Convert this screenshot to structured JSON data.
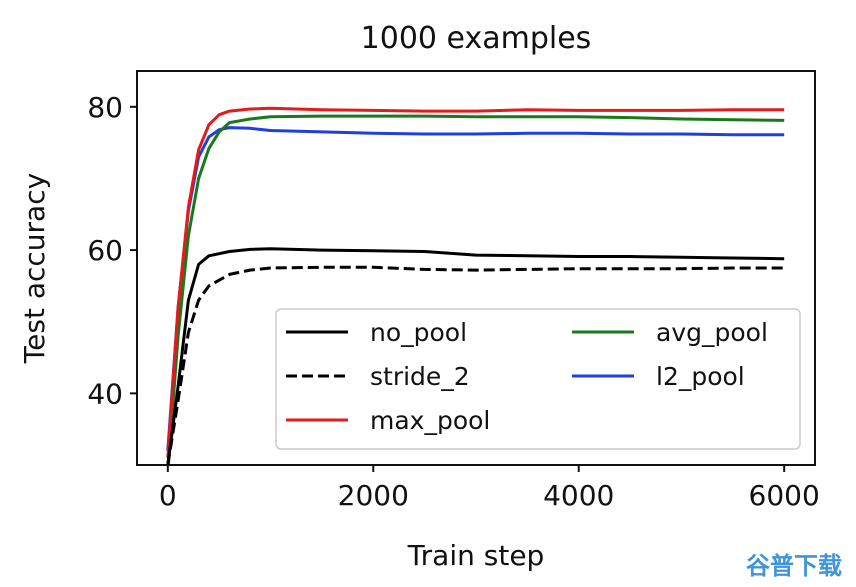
{
  "chart_data": {
    "type": "line",
    "title": "1000 examples",
    "xlabel": "Train step",
    "ylabel": "Test accuracy",
    "xlim": [
      -300,
      6300
    ],
    "ylim": [
      30,
      85
    ],
    "xticks": [
      0,
      2000,
      4000,
      6000
    ],
    "xtick_labels": [
      "0",
      "2000",
      "4000",
      "6000"
    ],
    "yticks": [
      40,
      60,
      80
    ],
    "ytick_labels": [
      "40",
      "60",
      "80"
    ],
    "grid": false,
    "legend": {
      "placement": "lower-right",
      "columns": 2
    },
    "series": [
      {
        "name": "no_pool",
        "color": "#000000",
        "dash": "solid",
        "x": [
          0,
          100,
          200,
          300,
          400,
          600,
          800,
          1000,
          1500,
          2000,
          2500,
          3000,
          3500,
          4000,
          4500,
          5000,
          5500,
          6000
        ],
        "y": [
          30,
          41,
          53,
          58,
          59.2,
          59.8,
          60.1,
          60.2,
          60,
          59.9,
          59.8,
          59.3,
          59.2,
          59.1,
          59.1,
          59,
          58.9,
          58.8
        ]
      },
      {
        "name": "stride_2",
        "color": "#000000",
        "dash": "dashed",
        "x": [
          0,
          100,
          200,
          300,
          400,
          600,
          800,
          1000,
          1500,
          2000,
          2500,
          3000,
          3500,
          4000,
          4500,
          5000,
          5500,
          6000
        ],
        "y": [
          30,
          39,
          48.5,
          53,
          55,
          56.6,
          57.2,
          57.5,
          57.6,
          57.6,
          57.3,
          57.2,
          57.3,
          57.4,
          57.4,
          57.4,
          57.5,
          57.5
        ]
      },
      {
        "name": "max_pool",
        "color": "#e41a1c",
        "dash": "solid",
        "x": [
          0,
          100,
          200,
          300,
          400,
          500,
          600,
          800,
          1000,
          1500,
          2000,
          2500,
          3000,
          3500,
          4000,
          4500,
          5000,
          5500,
          6000
        ],
        "y": [
          31,
          52,
          66,
          74,
          77.5,
          78.9,
          79.4,
          79.7,
          79.8,
          79.6,
          79.5,
          79.4,
          79.4,
          79.6,
          79.5,
          79.5,
          79.5,
          79.6,
          79.6
        ]
      },
      {
        "name": "avg_pool",
        "color": "#1a7a1a",
        "dash": "solid",
        "x": [
          0,
          100,
          200,
          300,
          400,
          500,
          600,
          800,
          1000,
          1500,
          2000,
          2500,
          3000,
          3500,
          4000,
          4500,
          5000,
          5500,
          6000
        ],
        "y": [
          29,
          48,
          62,
          70,
          74.2,
          76.5,
          77.8,
          78.3,
          78.6,
          78.7,
          78.7,
          78.7,
          78.6,
          78.6,
          78.6,
          78.5,
          78.3,
          78.2,
          78.1
        ]
      },
      {
        "name": "l2_pool",
        "color": "#1f3fe0",
        "dash": "solid",
        "x": [
          0,
          100,
          200,
          300,
          400,
          500,
          600,
          800,
          1000,
          1500,
          2000,
          2500,
          3000,
          3500,
          4000,
          4500,
          5000,
          5500,
          6000
        ],
        "y": [
          32,
          52,
          65.5,
          73,
          75.8,
          76.8,
          77.1,
          77,
          76.7,
          76.5,
          76.3,
          76.2,
          76.2,
          76.3,
          76.3,
          76.2,
          76.2,
          76.1,
          76.1
        ]
      }
    ]
  },
  "watermark": {
    "text": "谷普下载"
  }
}
